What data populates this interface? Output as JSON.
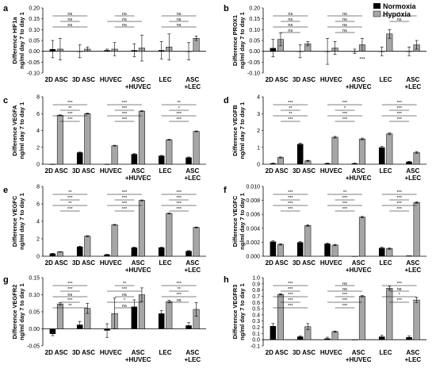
{
  "legend": {
    "entries": [
      {
        "label": "Normoxia",
        "color": "#000000"
      },
      {
        "label": "Hypoxia",
        "color": "#a6a6a6"
      }
    ],
    "placement": "top-right"
  },
  "colors": {
    "normoxia": "#000000",
    "hypoxia": "#a6a6a6",
    "axis": "#000000"
  },
  "chart_data": [
    {
      "panel": "a",
      "type": "bar",
      "ylabel": "Difference HIF1a\nng/ml day 7 to day 1",
      "categories": [
        "2D ASC",
        "3D ASC",
        "HUVEC",
        "ASC\n+HUVEC",
        "LEC",
        "ASC\n+LEC"
      ],
      "ylim": [
        -0.1,
        0.2
      ],
      "yticks": [
        "-0.10",
        "-0.05",
        "0.00",
        "0.05",
        "0.10",
        "0.15",
        "0.20"
      ],
      "series": [
        {
          "name": "Normoxia",
          "values": [
            0.01,
            0.0,
            0.005,
            0.005,
            0.005,
            0.0
          ],
          "errors": [
            0.04,
            0.03,
            0.005,
            0.03,
            0.04,
            0.04
          ]
        },
        {
          "name": "Hypoxia",
          "values": [
            0.01,
            0.01,
            0.01,
            0.015,
            0.02,
            0.06
          ],
          "errors": [
            0.05,
            0.01,
            0.03,
            0.06,
            0.06,
            0.01
          ]
        }
      ],
      "brackets": [
        "ns",
        "ns",
        "ns",
        "ns",
        "ns",
        "ns",
        "ns",
        "ns",
        "ns"
      ],
      "annotations": []
    },
    {
      "panel": "b",
      "type": "bar",
      "ylabel": "Difference PROX1\nng/ml day 7 to day 1",
      "categories": [
        "2D ASC",
        "3D ASC",
        "HUVEC",
        "ASC\n+HUVEC",
        "LEC",
        "ASC\n+LEC"
      ],
      "ylim": [
        -0.1,
        0.2
      ],
      "yticks": [
        "-0.10",
        "-0.05",
        "0.00",
        "0.05",
        "0.10",
        "0.15",
        "0.20"
      ],
      "series": [
        {
          "name": "Normoxia",
          "values": [
            0.015,
            0.0,
            0.0,
            0.0,
            0.0,
            0.0
          ],
          "errors": [
            0.04,
            0.03,
            0.06,
            0.01,
            0.02,
            0.02
          ]
        },
        {
          "name": "Hypoxia",
          "values": [
            0.055,
            0.035,
            0.015,
            0.03,
            0.08,
            0.03
          ],
          "errors": [
            0.03,
            0.01,
            0.03,
            0.03,
            0.02,
            0.02
          ]
        }
      ],
      "brackets": [
        "ns",
        "ns",
        "ns",
        "ns",
        "ns",
        "ns",
        "ns",
        "ns",
        "*",
        "ns"
      ],
      "annotations": [
        "***"
      ]
    },
    {
      "panel": "c",
      "type": "bar",
      "ylabel": "Difference VEGFA\nng/ml day 7 to day 1",
      "categories": [
        "2D ASC",
        "3D ASC",
        "HUVEC",
        "ASC\n+HUVEC",
        "LEC",
        "ASC\n+LEC"
      ],
      "ylim": [
        0,
        8
      ],
      "yticks": [
        "0",
        "2",
        "4",
        "6",
        "8"
      ],
      "series": [
        {
          "name": "Normoxia",
          "values": [
            0.0,
            1.4,
            0.0,
            1.2,
            1.0,
            0.8
          ],
          "errors": [
            0.02,
            0.05,
            0.02,
            0.05,
            0.05,
            0.05
          ]
        },
        {
          "name": "Hypoxia",
          "values": [
            5.8,
            6.0,
            2.2,
            6.3,
            2.9,
            3.9
          ],
          "errors": [
            0.05,
            0.05,
            0.05,
            0.05,
            0.05,
            0.05
          ]
        }
      ],
      "brackets": [
        "***",
        "**",
        "***",
        "***",
        "***",
        "***",
        "***",
        "***",
        "**",
        "*",
        "***",
        "***"
      ],
      "annotations": []
    },
    {
      "panel": "d",
      "type": "bar",
      "ylabel": "Difference VEGFB\nng/ml day 7 to day 1",
      "categories": [
        "2D ASC",
        "3D ASC",
        "HUVEC",
        "ASC\n+HUVEC",
        "LEC",
        "ASC\n+LEC"
      ],
      "ylim": [
        0,
        4
      ],
      "yticks": [
        "0",
        "1",
        "2",
        "3",
        "4"
      ],
      "series": [
        {
          "name": "Normoxia",
          "values": [
            0.05,
            1.2,
            0.05,
            0.05,
            1.0,
            0.15
          ],
          "errors": [
            0.02,
            0.05,
            0.02,
            0.02,
            0.05,
            0.02
          ]
        },
        {
          "name": "Hypoxia",
          "values": [
            0.4,
            0.2,
            1.6,
            1.5,
            1.8,
            0.7
          ],
          "errors": [
            0.03,
            0.03,
            0.05,
            0.05,
            0.05,
            0.05
          ]
        }
      ],
      "brackets": [
        "***",
        "**",
        "**",
        "***",
        "***",
        "*",
        "***",
        "***",
        "***",
        "***",
        "***",
        "***"
      ],
      "annotations": []
    },
    {
      "panel": "e",
      "type": "bar",
      "ylabel": "Difference VEGFC\nng/ml day 7 to day 1",
      "categories": [
        "2D ASC",
        "3D ASC",
        "HUVEC",
        "ASC\n+HUVEC",
        "LEC",
        "ASC\n+LEC"
      ],
      "ylim": [
        0,
        8
      ],
      "yticks": [
        "0",
        "2",
        "4",
        "6",
        "8"
      ],
      "series": [
        {
          "name": "Normoxia",
          "values": [
            0.3,
            1.1,
            0.2,
            1.0,
            1.0,
            0.6
          ],
          "errors": [
            0.03,
            0.05,
            0.02,
            0.05,
            0.05,
            0.05
          ]
        },
        {
          "name": "Hypoxia",
          "values": [
            0.5,
            2.3,
            3.6,
            6.4,
            4.9,
            3.3
          ],
          "errors": [
            0.03,
            0.05,
            0.05,
            0.05,
            0.05,
            0.05
          ]
        }
      ],
      "brackets": [
        "**",
        "***",
        "**",
        "***",
        "***",
        "***",
        "***",
        "***",
        "***",
        "***",
        "***",
        "***"
      ],
      "annotations": []
    },
    {
      "panel": "f",
      "type": "bar",
      "ylabel": "Difference VEGFC\nng/ml day 7 to day 1",
      "categories": [
        "2D ASC",
        "3D ASC",
        "HUVEC",
        "ASC\n+HUVEC",
        "LEC",
        "ASC\n+LEC"
      ],
      "ylim": [
        0,
        0.01
      ],
      "yticks": [
        "0.000",
        "0.002",
        "0.004",
        "0.006",
        "0.008",
        "0.010"
      ],
      "series": [
        {
          "name": "Normoxia",
          "values": [
            0.0021,
            0.002,
            0.0018,
            0.0,
            0.0012,
            0.0001
          ],
          "errors": [
            0.0001,
            0.0001,
            0.0001,
            0.0,
            0.0001,
            0.0
          ]
        },
        {
          "name": "Hypoxia",
          "values": [
            0.0017,
            0.0044,
            0.0016,
            0.0056,
            0.0011,
            0.0077
          ],
          "errors": [
            0.0001,
            0.0001,
            0.0001,
            0.0001,
            0.0001,
            0.0001
          ]
        }
      ],
      "brackets": [
        "***",
        "***",
        "***",
        "***",
        "**",
        "***",
        "***",
        "***",
        "***",
        "***",
        "***",
        "***"
      ],
      "annotations": []
    },
    {
      "panel": "g",
      "type": "bar",
      "ylabel": "Difference VEGFR2\nng/ml day 7 to day 1",
      "categories": [
        "2D ASC",
        "3D ASC",
        "HUVEC",
        "ASC\n+HUVEC",
        "LEC",
        "ASC\n+LEC"
      ],
      "ylim": [
        -0.05,
        0.15
      ],
      "yticks": [
        "-0.05",
        "0.00",
        "0.05",
        "0.10",
        "0.15"
      ],
      "series": [
        {
          "name": "Normoxia",
          "values": [
            -0.015,
            0.012,
            -0.005,
            0.065,
            0.045,
            0.01
          ],
          "errors": [
            0.005,
            0.01,
            0.02,
            0.02,
            0.008,
            0.008
          ]
        },
        {
          "name": "Hypoxia",
          "values": [
            0.073,
            0.06,
            0.045,
            0.1,
            0.08,
            0.057
          ],
          "errors": [
            0.004,
            0.015,
            0.045,
            0.02,
            0.004,
            0.02
          ]
        }
      ],
      "brackets": [
        "***",
        "***",
        "ns",
        "***",
        "**",
        "**",
        "***",
        "ns",
        "*",
        "ns",
        "***",
        "**",
        "***",
        "ns"
      ],
      "annotations": []
    },
    {
      "panel": "h",
      "type": "bar",
      "ylabel": "Difference VEGFR3\nng/ml day 7 to day 1",
      "categories": [
        "2D ASC",
        "3D ASC",
        "HUVEC",
        "ASC\n+HUVEC",
        "LEC",
        "ASC\n+LEC"
      ],
      "ylim": [
        -0.1,
        1.0
      ],
      "yticks": [
        "-0.1",
        "0.0",
        "0.1",
        "0.2",
        "0.3",
        "0.4",
        "0.5",
        "0.6",
        "0.7",
        "0.8",
        "0.9",
        "1.0"
      ],
      "series": [
        {
          "name": "Normoxia",
          "values": [
            0.22,
            0.05,
            0.02,
            0.0,
            0.05,
            0.04
          ],
          "errors": [
            0.04,
            0.01,
            0.02,
            0.0,
            0.02,
            0.02
          ]
        },
        {
          "name": "Hypoxia",
          "values": [
            0.73,
            0.21,
            0.13,
            0.7,
            0.83,
            0.64
          ],
          "errors": [
            0.01,
            0.05,
            0.01,
            0.01,
            0.03,
            0.04
          ]
        }
      ],
      "brackets": [
        "***",
        "***",
        "***",
        "***",
        "***",
        "ns",
        "ns",
        "***",
        "***",
        "***",
        "***",
        "ns",
        "*",
        "***"
      ],
      "annotations": []
    }
  ]
}
